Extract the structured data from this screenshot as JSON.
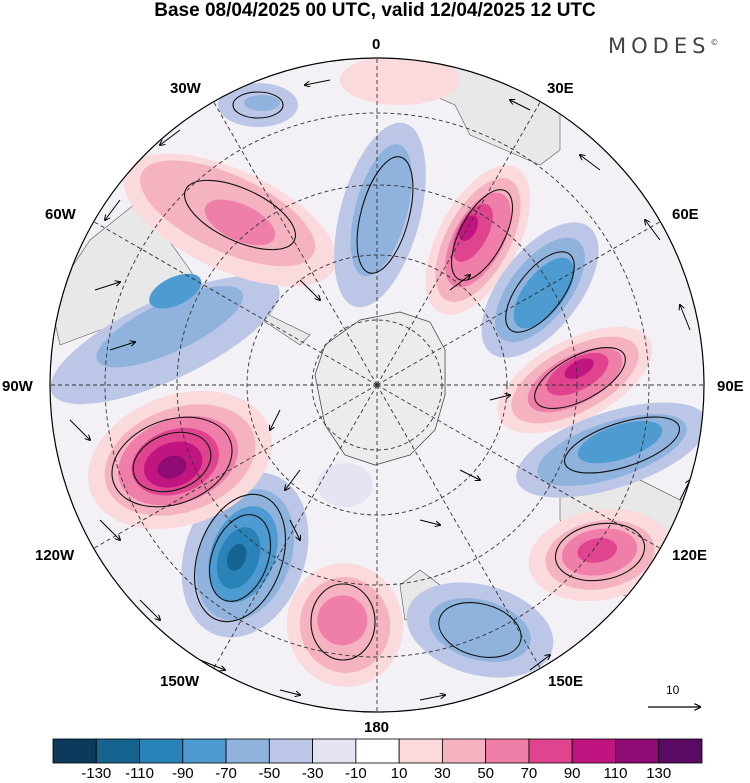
{
  "title": "Base 08/04/2025 00 UTC, valid 12/04/2025 12 UTC",
  "brand": "MODES",
  "brand_mark": "©",
  "meridian_labels": {
    "lon_0": "0",
    "lon_30e": "30E",
    "lon_60e": "60E",
    "lon_90e": "90E",
    "lon_120e": "120E",
    "lon_150e": "150E",
    "lon_180": "180",
    "lon_150w": "150W",
    "lon_120w": "120W",
    "lon_90w": "90W",
    "lon_60w": "60W",
    "lon_30w": "30W"
  },
  "vector_reference": "10",
  "colorbar": {
    "ticks": [
      "-130",
      "-110",
      "-90",
      "-70",
      "-50",
      "-30",
      "-10",
      "10",
      "30",
      "50",
      "70",
      "90",
      "110",
      "130"
    ],
    "colors": [
      "#0b3a5c",
      "#15648f",
      "#2a83b8",
      "#4d9bd0",
      "#8fb3dd",
      "#bcc6e6",
      "#e4e4f2",
      "#ffffff",
      "#fadadd",
      "#f5b3c2",
      "#ef7fa9",
      "#e0448f",
      "#c01480",
      "#8e0b73",
      "#5a0a62"
    ]
  },
  "map": {
    "projection": "South polar stereographic",
    "continent_color": "#ececec",
    "anomalies": [
      {
        "region": "south of Africa, 30E-40E",
        "value": 90
      },
      {
        "region": "50E-60E",
        "value": -70
      },
      {
        "region": "80E-90E",
        "value": 110
      },
      {
        "region": "95E-105E",
        "value": -70
      },
      {
        "region": "south of Australia, 120E",
        "value": 90
      },
      {
        "region": "150E-160E",
        "value": -50
      },
      {
        "region": "170W-180",
        "value": 50
      },
      {
        "region": "140W",
        "value": -90
      },
      {
        "region": "110W",
        "value": 130
      },
      {
        "region": "Drake Passage / Antarctic Peninsula",
        "value": -50
      },
      {
        "region": "South Atlantic, 40W",
        "value": 70
      },
      {
        "region": "10W",
        "value": -50
      }
    ]
  }
}
